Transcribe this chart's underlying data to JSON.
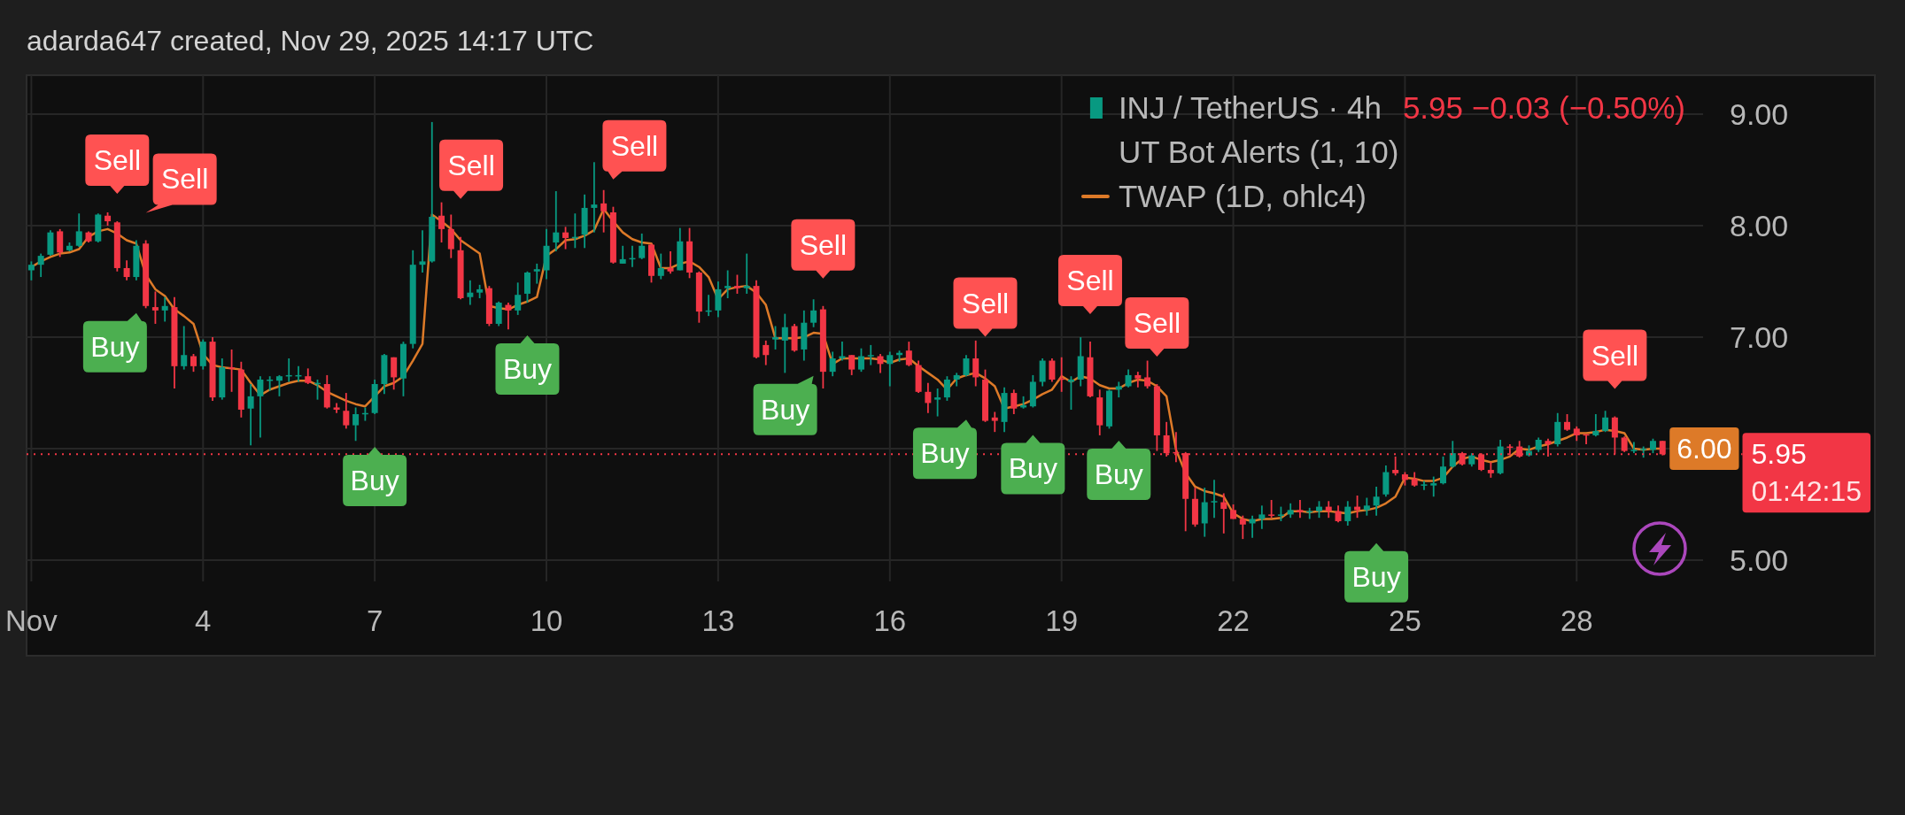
{
  "chart_data": {
    "type": "candlestick",
    "title": "adarda647 created, Nov 29, 2025 14:17 UTC",
    "subtitle": "5.95 −0.03 (−0.50%)",
    "legend_title": "UT Bot Alerts (1, 10)",
    "x": [
      "2025-11-01T00:00",
      "2025-11-01T04:00",
      "2025-11-01T08:00",
      "2025-11-01T12:00",
      "2025-11-01T16:00",
      "2025-11-01T20:00",
      "2025-11-02T00:00",
      "2025-11-02T04:00",
      "2025-11-02T08:00",
      "2025-11-02T12:00",
      "2025-11-02T16:00",
      "2025-11-02T20:00",
      "2025-11-03T00:00",
      "2025-11-03T04:00",
      "2025-11-03T08:00",
      "2025-11-03T12:00",
      "2025-11-03T16:00",
      "2025-11-03T20:00",
      "2025-11-04T00:00",
      "2025-11-04T04:00",
      "2025-11-04T08:00",
      "2025-11-04T12:00",
      "2025-11-04T16:00",
      "2025-11-04T20:00",
      "2025-11-05T00:00",
      "2025-11-05T04:00",
      "2025-11-05T08:00",
      "2025-11-05T12:00",
      "2025-11-05T16:00",
      "2025-11-05T20:00",
      "2025-11-06T00:00",
      "2025-11-06T04:00",
      "2025-11-06T08:00",
      "2025-11-06T12:00",
      "2025-11-06T16:00",
      "2025-11-06T20:00",
      "2025-11-07T00:00",
      "2025-11-07T04:00",
      "2025-11-07T08:00",
      "2025-11-07T12:00",
      "2025-11-07T16:00",
      "2025-11-07T20:00",
      "2025-11-08T00:00",
      "2025-11-08T04:00",
      "2025-11-08T08:00",
      "2025-11-08T12:00",
      "2025-11-08T16:00",
      "2025-11-08T20:00",
      "2025-11-09T00:00",
      "2025-11-09T04:00",
      "2025-11-09T08:00",
      "2025-11-09T12:00",
      "2025-11-09T16:00",
      "2025-11-09T20:00",
      "2025-11-10T00:00",
      "2025-11-10T04:00",
      "2025-11-10T08:00",
      "2025-11-10T12:00",
      "2025-11-10T16:00",
      "2025-11-10T20:00",
      "2025-11-11T00:00",
      "2025-11-11T04:00",
      "2025-11-11T08:00",
      "2025-11-11T12:00",
      "2025-11-11T16:00",
      "2025-11-11T20:00",
      "2025-11-12T00:00",
      "2025-11-12T04:00",
      "2025-11-12T08:00",
      "2025-11-12T12:00",
      "2025-11-12T16:00",
      "2025-11-12T20:00",
      "2025-11-13T00:00",
      "2025-11-13T04:00",
      "2025-11-13T08:00",
      "2025-11-13T12:00",
      "2025-11-13T16:00",
      "2025-11-13T20:00",
      "2025-11-14T00:00",
      "2025-11-14T04:00",
      "2025-11-14T08:00",
      "2025-11-14T12:00",
      "2025-11-14T16:00",
      "2025-11-14T20:00",
      "2025-11-15T00:00",
      "2025-11-15T04:00",
      "2025-11-15T08:00",
      "2025-11-15T12:00",
      "2025-11-15T16:00",
      "2025-11-15T20:00",
      "2025-11-16T00:00",
      "2025-11-16T04:00",
      "2025-11-16T08:00",
      "2025-11-16T12:00",
      "2025-11-16T16:00",
      "2025-11-16T20:00",
      "2025-11-17T00:00",
      "2025-11-17T04:00",
      "2025-11-17T08:00",
      "2025-11-17T12:00",
      "2025-11-17T16:00",
      "2025-11-17T20:00",
      "2025-11-18T00:00",
      "2025-11-18T04:00",
      "2025-11-18T08:00",
      "2025-11-18T12:00",
      "2025-11-18T16:00",
      "2025-11-18T20:00",
      "2025-11-19T00:00",
      "2025-11-19T04:00",
      "2025-11-19T08:00",
      "2025-11-19T12:00",
      "2025-11-19T16:00",
      "2025-11-19T20:00",
      "2025-11-20T00:00",
      "2025-11-20T04:00",
      "2025-11-20T08:00",
      "2025-11-20T12:00",
      "2025-11-20T16:00",
      "2025-11-20T20:00",
      "2025-11-21T00:00",
      "2025-11-21T04:00",
      "2025-11-21T08:00",
      "2025-11-21T12:00",
      "2025-11-21T16:00",
      "2025-11-21T20:00",
      "2025-11-22T00:00",
      "2025-11-22T04:00",
      "2025-11-22T08:00",
      "2025-11-22T12:00",
      "2025-11-22T16:00",
      "2025-11-22T20:00",
      "2025-11-23T00:00",
      "2025-11-23T04:00",
      "2025-11-23T08:00",
      "2025-11-23T12:00",
      "2025-11-23T16:00",
      "2025-11-23T20:00",
      "2025-11-24T00:00",
      "2025-11-24T04:00",
      "2025-11-24T08:00",
      "2025-11-24T12:00",
      "2025-11-24T16:00",
      "2025-11-24T20:00",
      "2025-11-25T00:00",
      "2025-11-25T04:00",
      "2025-11-25T08:00",
      "2025-11-25T12:00",
      "2025-11-25T16:00",
      "2025-11-25T20:00",
      "2025-11-26T00:00",
      "2025-11-26T04:00",
      "2025-11-26T08:00",
      "2025-11-26T12:00",
      "2025-11-26T16:00",
      "2025-11-26T20:00",
      "2025-11-27T00:00",
      "2025-11-27T04:00",
      "2025-11-27T08:00",
      "2025-11-27T12:00",
      "2025-11-27T16:00",
      "2025-11-27T20:00",
      "2025-11-28T00:00",
      "2025-11-28T04:00",
      "2025-11-28T08:00",
      "2025-11-28T12:00",
      "2025-11-28T16:00",
      "2025-11-28T20:00",
      "2025-11-29T00:00",
      "2025-11-29T04:00",
      "2025-11-29T08:00",
      "2025-11-29T12:00"
    ],
    "xlim": [
      "2025-10-31T22:00",
      "2025-11-30T05:00"
    ],
    "xticks": [
      {
        "value": "2025-11-01",
        "label": "Nov"
      },
      {
        "value": "2025-11-04",
        "label": "4"
      },
      {
        "value": "2025-11-07",
        "label": "7"
      },
      {
        "value": "2025-11-10",
        "label": "10"
      },
      {
        "value": "2025-11-13",
        "label": "13"
      },
      {
        "value": "2025-11-16",
        "label": "16"
      },
      {
        "value": "2025-11-19",
        "label": "19"
      },
      {
        "value": "2025-11-22",
        "label": "22"
      },
      {
        "value": "2025-11-25",
        "label": "25"
      },
      {
        "value": "2025-11-28",
        "label": "28"
      }
    ],
    "ylim": [
      4.81,
      9.35
    ],
    "yticks": [
      {
        "value": 5,
        "label": "5.00"
      },
      {
        "value": 6,
        "label": null
      },
      {
        "value": 7,
        "label": "7.00"
      },
      {
        "value": 8,
        "label": "8.00"
      },
      {
        "value": 9,
        "label": "9.00"
      }
    ],
    "grid": true,
    "legend": "top right",
    "series": [
      {
        "name": "INJ / TetherUS · 4h",
        "ohlc": [
          [
            7.6,
            7.68,
            7.51,
            7.65
          ],
          [
            7.65,
            7.75,
            7.54,
            7.73
          ],
          [
            7.74,
            7.96,
            7.73,
            7.94
          ],
          [
            7.95,
            7.97,
            7.72,
            7.76
          ],
          [
            7.78,
            7.85,
            7.77,
            7.82
          ],
          [
            7.82,
            8.11,
            7.81,
            7.95
          ],
          [
            7.94,
            7.95,
            7.85,
            7.86
          ],
          [
            7.86,
            8.11,
            7.85,
            8.1
          ],
          [
            8.09,
            8.12,
            8.0,
            8.04
          ],
          [
            8.03,
            8.04,
            7.59,
            7.62
          ],
          [
            7.62,
            7.69,
            7.51,
            7.54
          ],
          [
            7.54,
            7.87,
            7.51,
            7.82
          ],
          [
            7.84,
            7.87,
            7.26,
            7.28
          ],
          [
            7.27,
            7.41,
            7.12,
            7.24
          ],
          [
            7.24,
            7.36,
            7.14,
            7.28
          ],
          [
            7.27,
            7.36,
            6.54,
            6.74
          ],
          [
            6.74,
            7.1,
            6.71,
            6.84
          ],
          [
            6.83,
            6.85,
            6.69,
            6.74
          ],
          [
            6.74,
            6.98,
            6.71,
            6.96
          ],
          [
            6.96,
            7.0,
            6.43,
            6.46
          ],
          [
            6.46,
            6.81,
            6.44,
            6.73
          ],
          [
            6.73,
            6.89,
            6.51,
            6.72
          ],
          [
            6.71,
            6.78,
            6.28,
            6.35
          ],
          [
            6.36,
            6.58,
            6.03,
            6.47
          ],
          [
            6.47,
            6.65,
            6.1,
            6.62
          ],
          [
            6.61,
            6.65,
            6.52,
            6.62
          ],
          [
            6.61,
            6.66,
            6.47,
            6.65
          ],
          [
            6.65,
            6.81,
            6.6,
            6.66
          ],
          [
            6.65,
            6.74,
            6.6,
            6.66
          ],
          [
            6.65,
            6.72,
            6.58,
            6.59
          ],
          [
            6.58,
            6.62,
            6.44,
            6.59
          ],
          [
            6.58,
            6.66,
            6.36,
            6.37
          ],
          [
            6.37,
            6.41,
            6.32,
            6.35
          ],
          [
            6.34,
            6.5,
            6.18,
            6.21
          ],
          [
            6.21,
            6.37,
            6.07,
            6.31
          ],
          [
            6.31,
            6.37,
            6.25,
            6.32
          ],
          [
            6.32,
            6.62,
            6.31,
            6.58
          ],
          [
            6.58,
            6.85,
            6.49,
            6.84
          ],
          [
            6.82,
            6.82,
            6.53,
            6.64
          ],
          [
            6.63,
            6.96,
            6.47,
            6.94
          ],
          [
            6.94,
            7.78,
            6.9,
            7.65
          ],
          [
            7.65,
            7.96,
            7.58,
            7.68
          ],
          [
            7.68,
            8.93,
            7.67,
            8.08
          ],
          [
            8.09,
            8.21,
            7.85,
            7.97
          ],
          [
            7.97,
            8.1,
            7.71,
            7.79
          ],
          [
            7.78,
            7.9,
            7.34,
            7.35
          ],
          [
            7.36,
            7.51,
            7.29,
            7.4
          ],
          [
            7.4,
            7.47,
            7.35,
            7.43
          ],
          [
            7.44,
            7.46,
            7.1,
            7.12
          ],
          [
            7.12,
            7.32,
            7.1,
            7.31
          ],
          [
            7.29,
            7.31,
            7.07,
            7.24
          ],
          [
            7.24,
            7.49,
            7.2,
            7.38
          ],
          [
            7.39,
            7.59,
            7.31,
            7.58
          ],
          [
            7.59,
            7.66,
            7.48,
            7.61
          ],
          [
            7.6,
            7.97,
            7.52,
            7.82
          ],
          [
            7.85,
            8.31,
            7.77,
            7.94
          ],
          [
            7.94,
            7.99,
            7.79,
            7.89
          ],
          [
            7.89,
            8.11,
            7.8,
            7.9
          ],
          [
            7.92,
            8.28,
            7.8,
            8.16
          ],
          [
            8.16,
            8.57,
            7.94,
            8.19
          ],
          [
            8.2,
            8.32,
            7.94,
            8.13
          ],
          [
            8.12,
            8.17,
            7.66,
            7.67
          ],
          [
            7.66,
            7.82,
            7.66,
            7.7
          ],
          [
            7.7,
            7.82,
            7.63,
            7.71
          ],
          [
            7.71,
            7.93,
            7.7,
            7.82
          ],
          [
            7.83,
            7.84,
            7.49,
            7.55
          ],
          [
            7.55,
            7.75,
            7.52,
            7.62
          ],
          [
            7.62,
            7.77,
            7.57,
            7.59
          ],
          [
            7.6,
            7.98,
            7.6,
            7.86
          ],
          [
            7.86,
            7.98,
            7.53,
            7.58
          ],
          [
            7.58,
            7.59,
            7.13,
            7.23
          ],
          [
            7.23,
            7.38,
            7.19,
            7.24
          ],
          [
            7.24,
            7.5,
            7.18,
            7.43
          ],
          [
            7.44,
            7.6,
            7.35,
            7.46
          ],
          [
            7.46,
            7.56,
            7.39,
            7.44
          ],
          [
            7.44,
            7.75,
            7.39,
            7.46
          ],
          [
            7.46,
            7.51,
            6.81,
            6.82
          ],
          [
            6.93,
            6.97,
            6.75,
            6.84
          ],
          [
            6.98,
            7.1,
            6.89,
            7.0
          ],
          [
            6.97,
            7.21,
            6.68,
            7.09
          ],
          [
            7.1,
            7.12,
            6.87,
            6.88
          ],
          [
            6.89,
            7.24,
            6.79,
            7.13
          ],
          [
            7.13,
            7.34,
            7.09,
            7.24
          ],
          [
            7.25,
            7.28,
            6.54,
            6.69
          ],
          [
            6.69,
            6.87,
            6.65,
            6.81
          ],
          [
            6.81,
            6.96,
            6.79,
            6.83
          ],
          [
            6.84,
            6.84,
            6.66,
            6.71
          ],
          [
            6.71,
            6.9,
            6.69,
            6.83
          ],
          [
            6.83,
            6.93,
            6.75,
            6.84
          ],
          [
            6.83,
            6.85,
            6.68,
            6.76
          ],
          [
            6.76,
            6.87,
            6.56,
            6.84
          ],
          [
            6.84,
            6.88,
            6.78,
            6.86
          ],
          [
            6.88,
            6.96,
            6.74,
            6.75
          ],
          [
            6.75,
            6.79,
            6.5,
            6.51
          ],
          [
            6.51,
            6.59,
            6.32,
            6.41
          ],
          [
            6.44,
            6.54,
            6.29,
            6.46
          ],
          [
            6.46,
            6.65,
            6.43,
            6.62
          ],
          [
            6.62,
            6.68,
            6.56,
            6.66
          ],
          [
            6.66,
            6.84,
            6.65,
            6.81
          ],
          [
            6.81,
            6.97,
            6.56,
            6.64
          ],
          [
            6.62,
            6.71,
            6.24,
            6.25
          ],
          [
            6.28,
            6.33,
            6.15,
            6.25
          ],
          [
            6.24,
            6.55,
            6.15,
            6.5
          ],
          [
            6.5,
            6.53,
            6.31,
            6.36
          ],
          [
            6.37,
            6.47,
            6.36,
            6.39
          ],
          [
            6.38,
            6.66,
            6.37,
            6.6
          ],
          [
            6.6,
            6.81,
            6.56,
            6.79
          ],
          [
            6.79,
            6.81,
            6.6,
            6.62
          ],
          [
            6.63,
            6.82,
            6.51,
            6.62
          ],
          [
            6.6,
            6.65,
            6.35,
            6.62
          ],
          [
            6.62,
            7.0,
            6.56,
            6.83
          ],
          [
            6.82,
            6.96,
            6.46,
            6.47
          ],
          [
            6.46,
            6.53,
            6.12,
            6.21
          ],
          [
            6.2,
            6.53,
            6.18,
            6.52
          ],
          [
            6.53,
            6.6,
            6.46,
            6.56
          ],
          [
            6.56,
            6.71,
            6.55,
            6.66
          ],
          [
            6.66,
            6.69,
            6.55,
            6.63
          ],
          [
            6.64,
            6.79,
            6.54,
            6.56
          ],
          [
            6.56,
            6.58,
            5.98,
            6.12
          ],
          [
            6.12,
            6.24,
            5.93,
            5.96
          ],
          [
            5.97,
            6.15,
            5.88,
            5.96
          ],
          [
            5.96,
            5.97,
            5.26,
            5.55
          ],
          [
            5.55,
            5.65,
            5.3,
            5.32
          ],
          [
            5.33,
            5.65,
            5.21,
            5.52
          ],
          [
            5.52,
            5.72,
            5.38,
            5.53
          ],
          [
            5.52,
            5.6,
            5.24,
            5.46
          ],
          [
            5.45,
            5.5,
            5.37,
            5.37
          ],
          [
            5.37,
            5.4,
            5.19,
            5.32
          ],
          [
            5.33,
            5.4,
            5.2,
            5.37
          ],
          [
            5.37,
            5.49,
            5.28,
            5.41
          ],
          [
            5.41,
            5.54,
            5.38,
            5.4
          ],
          [
            5.4,
            5.48,
            5.35,
            5.41
          ],
          [
            5.41,
            5.51,
            5.38,
            5.45
          ],
          [
            5.45,
            5.54,
            5.38,
            5.43
          ],
          [
            5.43,
            5.47,
            5.37,
            5.44
          ],
          [
            5.44,
            5.53,
            5.38,
            5.48
          ],
          [
            5.48,
            5.53,
            5.38,
            5.44
          ],
          [
            5.44,
            5.49,
            5.34,
            5.35
          ],
          [
            5.35,
            5.53,
            5.31,
            5.48
          ],
          [
            5.48,
            5.58,
            5.38,
            5.45
          ],
          [
            5.45,
            5.56,
            5.4,
            5.49
          ],
          [
            5.49,
            5.66,
            5.4,
            5.57
          ],
          [
            5.59,
            5.85,
            5.57,
            5.79
          ],
          [
            5.81,
            5.93,
            5.76,
            5.78
          ],
          [
            5.77,
            5.79,
            5.67,
            5.72
          ],
          [
            5.73,
            5.79,
            5.66,
            5.67
          ],
          [
            5.67,
            5.71,
            5.63,
            5.68
          ],
          [
            5.67,
            5.75,
            5.57,
            5.69
          ],
          [
            5.69,
            5.93,
            5.68,
            5.84
          ],
          [
            5.84,
            6.07,
            5.83,
            5.96
          ],
          [
            5.96,
            5.97,
            5.85,
            5.86
          ],
          [
            5.86,
            5.96,
            5.84,
            5.94
          ],
          [
            5.95,
            5.96,
            5.8,
            5.81
          ],
          [
            5.81,
            5.88,
            5.74,
            5.78
          ],
          [
            5.78,
            6.08,
            5.77,
            6.02
          ],
          [
            6.02,
            6.04,
            5.94,
            6.01
          ],
          [
            6.02,
            6.07,
            5.92,
            5.93
          ],
          [
            5.94,
            6.03,
            5.93,
            5.98
          ],
          [
            5.99,
            6.1,
            5.97,
            6.08
          ],
          [
            6.07,
            6.09,
            5.93,
            6.04
          ],
          [
            6.04,
            6.32,
            6.02,
            6.24
          ],
          [
            6.24,
            6.31,
            6.16,
            6.17
          ],
          [
            6.18,
            6.2,
            6.07,
            6.12
          ],
          [
            6.13,
            6.13,
            6.04,
            6.12
          ],
          [
            6.12,
            6.31,
            6.11,
            6.16
          ],
          [
            6.16,
            6.34,
            6.15,
            6.28
          ],
          [
            6.28,
            6.29,
            5.95,
            6.1
          ],
          [
            6.1,
            6.11,
            5.97,
            5.98
          ],
          [
            5.98,
            6.06,
            5.96,
            5.99
          ],
          [
            5.99,
            6.02,
            5.92,
            6.0
          ],
          [
            5.99,
            6.09,
            5.96,
            6.07
          ],
          [
            6.07,
            6.07,
            5.94,
            5.95
          ]
        ],
        "colors": [
          "#089981",
          "#089981",
          "#089981",
          "#f23645",
          "#089981",
          "#089981",
          "#f23645",
          "#089981",
          "#f23645",
          "#f23645",
          "#f23645",
          "#089981",
          "#f23645",
          "#f23645",
          "#089981",
          "#f23645",
          "#089981",
          "#f23645",
          "#089981",
          "#f23645",
          "#089981",
          "#f23645",
          "#f23645",
          "#089981",
          "#089981",
          "#089981",
          "#089981",
          "#089981",
          "#089981",
          "#f23645",
          "#089981",
          "#f23645",
          "#f23645",
          "#f23645",
          "#089981",
          "#089981",
          "#089981",
          "#089981",
          "#f23645",
          "#089981",
          "#089981",
          "#089981",
          "#089981",
          "#f23645",
          "#f23645",
          "#f23645",
          "#089981",
          "#089981",
          "#f23645",
          "#089981",
          "#f23645",
          "#089981",
          "#089981",
          "#089981",
          "#089981",
          "#089981",
          "#f23645",
          "#089981",
          "#089981",
          "#089981",
          "#f23645",
          "#f23645",
          "#089981",
          "#089981",
          "#089981",
          "#f23645",
          "#089981",
          "#f23645",
          "#089981",
          "#f23645",
          "#f23645",
          "#089981",
          "#089981",
          "#089981",
          "#f23645",
          "#089981",
          "#f23645",
          "#f23645",
          "#089981",
          "#089981",
          "#f23645",
          "#089981",
          "#089981",
          "#f23645",
          "#089981",
          "#089981",
          "#f23645",
          "#089981",
          "#089981",
          "#f23645",
          "#089981",
          "#089981",
          "#f23645",
          "#f23645",
          "#f23645",
          "#089981",
          "#089981",
          "#089981",
          "#089981",
          "#f23645",
          "#f23645",
          "#f23645",
          "#089981",
          "#f23645",
          "#089981",
          "#089981",
          "#089981",
          "#f23645",
          "#f23645",
          "#089981",
          "#089981",
          "#f23645",
          "#f23645",
          "#089981",
          "#089981",
          "#089981",
          "#f23645",
          "#f23645",
          "#f23645",
          "#f23645",
          "#f23645",
          "#f23645",
          "#f23645",
          "#089981",
          "#089981",
          "#f23645",
          "#f23645",
          "#f23645",
          "#089981",
          "#089981",
          "#f23645",
          "#089981",
          "#089981",
          "#f23645",
          "#089981",
          "#089981",
          "#f23645",
          "#f23645",
          "#089981",
          "#f23645",
          "#089981",
          "#089981",
          "#089981",
          "#f23645",
          "#f23645",
          "#f23645",
          "#089981",
          "#089981",
          "#089981",
          "#089981",
          "#f23645",
          "#089981",
          "#f23645",
          "#f23645",
          "#089981",
          "#f23645",
          "#f23645",
          "#089981",
          "#089981",
          "#f23645",
          "#089981",
          "#f23645",
          "#f23645",
          "#f23645",
          "#089981",
          "#089981",
          "#f23645",
          "#f23645",
          "#089981",
          "#089981",
          "#089981",
          "#f23645"
        ]
      },
      {
        "type": "line",
        "name": "TWAP (1D, ohlc4)",
        "color": "#dd7a28",
        "values": [
          7.63,
          7.68,
          7.72,
          7.75,
          7.76,
          7.79,
          7.9,
          7.95,
          7.97,
          7.93,
          7.87,
          7.84,
          7.56,
          7.43,
          7.37,
          7.25,
          7.19,
          7.12,
          6.85,
          6.75,
          6.73,
          6.72,
          6.71,
          6.59,
          6.48,
          6.53,
          6.56,
          6.59,
          6.61,
          6.61,
          6.57,
          6.51,
          6.47,
          6.43,
          6.4,
          6.38,
          6.47,
          6.56,
          6.59,
          6.65,
          6.79,
          6.94,
          8.1,
          8.04,
          7.97,
          7.87,
          7.81,
          7.75,
          7.28,
          7.26,
          7.25,
          7.29,
          7.32,
          7.36,
          7.73,
          7.79,
          7.87,
          7.88,
          7.91,
          7.96,
          8.15,
          8.04,
          7.94,
          7.88,
          7.85,
          7.84,
          7.62,
          7.62,
          7.66,
          7.68,
          7.63,
          7.54,
          7.34,
          7.43,
          7.45,
          7.46,
          7.4,
          7.29,
          6.99,
          6.99,
          6.99,
          7.0,
          7.04,
          7.03,
          6.76,
          6.81,
          6.81,
          6.81,
          6.81,
          6.8,
          6.77,
          6.8,
          6.81,
          6.74,
          6.68,
          6.62,
          6.53,
          6.63,
          6.66,
          6.68,
          6.63,
          6.56,
          6.36,
          6.38,
          6.4,
          6.44,
          6.49,
          6.53,
          6.65,
          6.6,
          6.65,
          6.63,
          6.57,
          6.54,
          6.54,
          6.59,
          6.62,
          6.61,
          6.56,
          6.47,
          5.99,
          5.78,
          5.66,
          5.62,
          5.6,
          5.57,
          5.42,
          5.37,
          5.35,
          5.37,
          5.37,
          5.38,
          5.44,
          5.44,
          5.43,
          5.44,
          5.44,
          5.43,
          5.42,
          5.44,
          5.45,
          5.47,
          5.51,
          5.57,
          5.74,
          5.73,
          5.71,
          5.71,
          5.74,
          5.84,
          5.91,
          5.93,
          5.9,
          5.88,
          5.9,
          5.93,
          6.0,
          5.99,
          6.02,
          6.04,
          6.07,
          6.1,
          6.14,
          6.14,
          6.15,
          6.17,
          6.16,
          6.14,
          6.0,
          5.99,
          6.0,
          6.0
        ],
        "value_labels": [
          null,
          null,
          null,
          null,
          null,
          null,
          null,
          null,
          null,
          null,
          null,
          null,
          null,
          null,
          null,
          null,
          null,
          null,
          null,
          null,
          null,
          null,
          null,
          null,
          null,
          null,
          null,
          null,
          null,
          null,
          null,
          null,
          null,
          null,
          null,
          null,
          null,
          null,
          null,
          null,
          null,
          null,
          null,
          null,
          null,
          null,
          null,
          null,
          null,
          null,
          null,
          null,
          null,
          null,
          null,
          null,
          null,
          null,
          null,
          null,
          null,
          null,
          null,
          null,
          null,
          null,
          null,
          null,
          null,
          null,
          null,
          null,
          null,
          null,
          null,
          null,
          null,
          null,
          null,
          null,
          null,
          null,
          null,
          null,
          null,
          null,
          null,
          null,
          null,
          null,
          null,
          null,
          null,
          null,
          null,
          null,
          null,
          null,
          null,
          null,
          null,
          null,
          null,
          null,
          null,
          null,
          null,
          null,
          null,
          null,
          null,
          null,
          null,
          null,
          null,
          null,
          null,
          null,
          null,
          null,
          null,
          null,
          null,
          null,
          null,
          null,
          null,
          null,
          null,
          null,
          null,
          null,
          null,
          null,
          null,
          null,
          null,
          null,
          null,
          null,
          null,
          null,
          null,
          null,
          null,
          null,
          null,
          null,
          null,
          null,
          null,
          null,
          null,
          null,
          null,
          null,
          null,
          null,
          null,
          null,
          null,
          null,
          null,
          null,
          null,
          null,
          null,
          null,
          null,
          null,
          null,
          "6.00"
        ]
      }
    ],
    "ref_lines": [
      {
        "axis": "y",
        "value": 5.95,
        "label": "5.95",
        "color": "#f23645",
        "line_style": "dotted"
      }
    ],
    "annotations": [
      "01:42:15",
      {
        "text": "Sell",
        "x": "2025-11-02T12:00",
        "y": 8.04
      },
      {
        "text": "Buy",
        "x": "2025-11-02T20:00",
        "y": 7.51
      },
      {
        "text": "Sell",
        "x": "2025-11-03T00:00",
        "y": 7.87
      },
      {
        "text": "Buy",
        "x": "2025-11-07T00:00",
        "y": 6.31
      },
      {
        "text": "Sell",
        "x": "2025-11-08T12:00",
        "y": 7.9
      },
      {
        "text": "Buy",
        "x": "2025-11-09T16:00",
        "y": 7.31
      },
      {
        "text": "Sell",
        "x": "2025-11-11T04:00",
        "y": 8.17
      },
      {
        "text": "Buy",
        "x": "2025-11-14T16:00",
        "y": 7.09
      },
      {
        "text": "Sell",
        "x": "2025-11-14T20:00",
        "y": 7.28
      },
      {
        "text": "Buy",
        "x": "2025-11-17T08:00",
        "y": 6.65
      },
      {
        "text": "Sell",
        "x": "2025-11-17T16:00",
        "y": 6.71
      },
      {
        "text": "Buy",
        "x": "2025-11-18T12:00",
        "y": 6.37
      },
      {
        "text": "Sell",
        "x": "2025-11-19T12:00",
        "y": 6.96
      },
      {
        "text": "Buy",
        "x": "2025-11-20T00:00",
        "y": 6.46
      },
      {
        "text": "Sell",
        "x": "2025-11-20T16:00",
        "y": 6.58
      },
      {
        "text": "Buy",
        "x": "2025-11-24T12:00",
        "y": 5.4
      },
      {
        "text": "Sell",
        "x": "2025-11-28T16:00",
        "y": 6.29
      }
    ]
  }
}
